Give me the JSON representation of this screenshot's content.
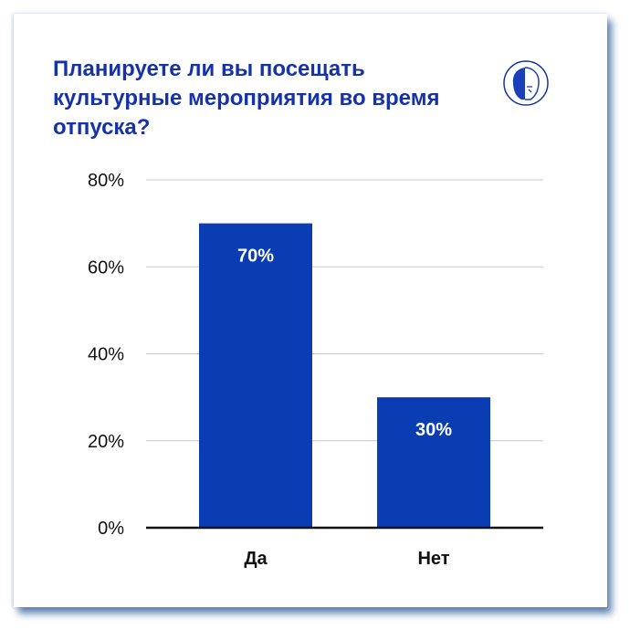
{
  "chart_data": {
    "type": "bar",
    "title": "Планируете ли вы посещать культурные мероприятия во время отпуска?",
    "categories": [
      "Да",
      "Нет"
    ],
    "values": [
      70,
      30
    ],
    "data_labels": [
      "70%",
      "30%"
    ],
    "ylim": [
      0,
      80
    ],
    "yticks": [
      0,
      20,
      40,
      60,
      80
    ],
    "ytick_labels": [
      "0%",
      "20%",
      "40%",
      "60%",
      "80%"
    ],
    "grid": true,
    "bar_color": "#0a3db3",
    "title_color": "#1532a6"
  },
  "logo": {
    "icon": "lion-logo-icon"
  }
}
